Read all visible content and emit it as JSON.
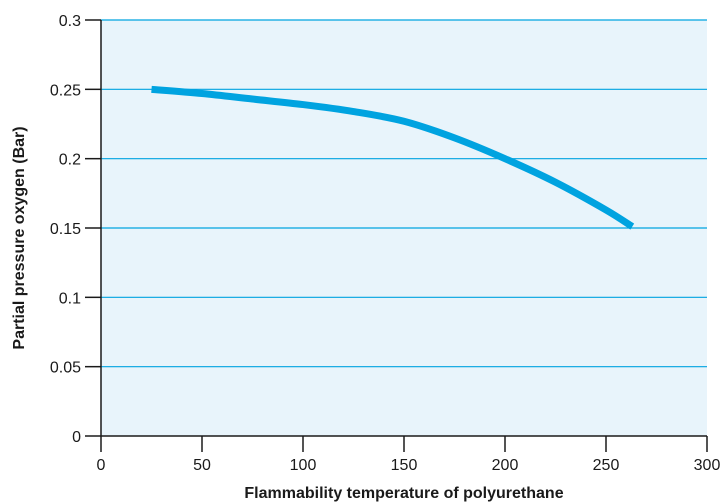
{
  "chart_data": {
    "type": "line",
    "title": "",
    "xlabel": "Flammability temperature of polyurethane",
    "ylabel": "Partial pressure oxygen (Bar)",
    "xlim": [
      0,
      300
    ],
    "ylim": [
      0,
      0.3
    ],
    "xticks": [
      0,
      50,
      100,
      150,
      200,
      250,
      300
    ],
    "yticks": [
      0,
      0.05,
      0.1,
      0.15,
      0.2,
      0.25,
      0.3
    ],
    "xtick_labels": [
      "0",
      "50",
      "100",
      "150",
      "200",
      "250",
      "300"
    ],
    "ytick_labels": [
      "0",
      "0.05",
      "0.1",
      "0.15",
      "0.2",
      "0.25",
      "0.3"
    ],
    "grid": "horizontal",
    "series": [
      {
        "x": [
          25,
          50,
          75,
          100,
          125,
          150,
          175,
          200,
          225,
          250,
          263
        ],
        "y": [
          0.25,
          0.247,
          0.243,
          0.239,
          0.234,
          0.227,
          0.215,
          0.2,
          0.183,
          0.163,
          0.151
        ]
      }
    ],
    "colors": {
      "plot_background": "#E8F4FB",
      "line": "#00A3E0",
      "axis": "#1a1a1a",
      "gridline": "#00A3E0"
    }
  }
}
